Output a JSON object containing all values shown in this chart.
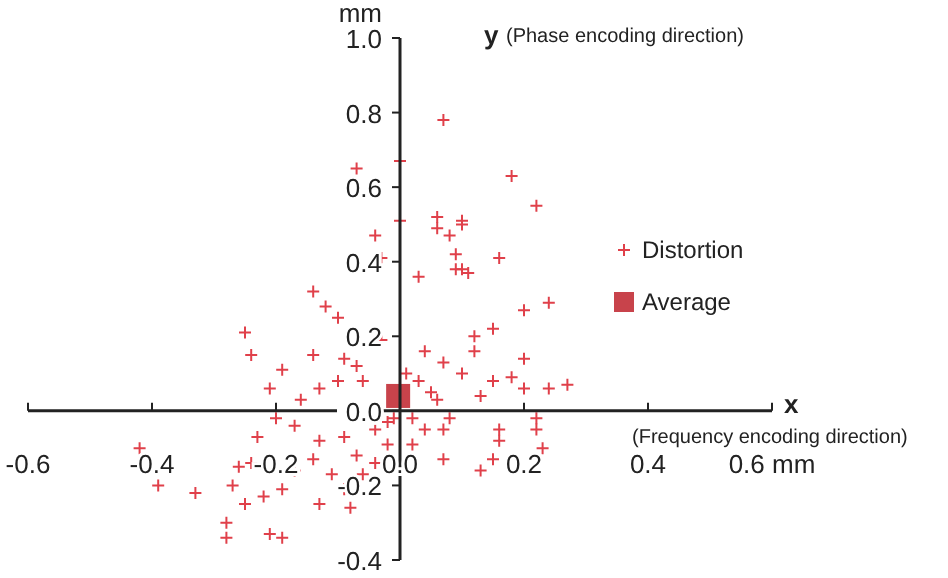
{
  "chart_data": {
    "type": "scatter",
    "ylabel": "mm",
    "annotations": [
      "y",
      "(Phase encoding direction)",
      "x",
      "(Frequency encoding direction)"
    ],
    "xlim": [
      -0.6,
      0.6
    ],
    "xticks": [
      -0.6,
      -0.4,
      -0.2,
      {
        "value": 0,
        "label": "0.0"
      },
      0.2,
      0.4,
      {
        "value": 0.6,
        "label": "0.6 mm"
      }
    ],
    "ylim": [
      -0.4,
      1.0
    ],
    "yticks": [
      -0.4,
      -0.2,
      {
        "value": 0,
        "label": "0.0"
      },
      0.2,
      0.4,
      0.6,
      0.8,
      {
        "value": 1,
        "label": "1.0"
      }
    ],
    "legend": "right",
    "series": [
      {
        "name": "Distortion",
        "color": "#e0404a",
        "marker": "cross",
        "x": [
          0.07,
          -0.07,
          0.0,
          0.0,
          -0.04,
          -0.03,
          0.06,
          0.06,
          0.1,
          0.08,
          0.09,
          0.09,
          0.1,
          0.03,
          0.18,
          0.22,
          0.1,
          0.16,
          0.11,
          0.2,
          0.24,
          0.12,
          0.2,
          0.27,
          0.24,
          0.2,
          0.18,
          0.15,
          0.13,
          0.22,
          0.22,
          0.16,
          0.16,
          0.13,
          0.23,
          0.15,
          -0.14,
          -0.12,
          -0.25,
          -0.24,
          -0.19,
          -0.21,
          -0.16,
          -0.14,
          -0.09,
          -0.07,
          -0.06,
          -0.1,
          -0.13,
          -0.03,
          0.04,
          0.07,
          0.1,
          0.03,
          0.06,
          0.02,
          0.04,
          0.07,
          0.02,
          0.07,
          -0.2,
          -0.23,
          -0.17,
          -0.13,
          -0.09,
          -0.04,
          -0.02,
          -0.42,
          -0.39,
          -0.33,
          -0.26,
          -0.24,
          -0.27,
          -0.25,
          -0.22,
          -0.19,
          -0.17,
          -0.14,
          -0.11,
          -0.13,
          -0.08,
          -0.09,
          -0.06,
          -0.04,
          -0.28,
          -0.28,
          -0.21,
          -0.19,
          -0.02,
          -0.07,
          0.01,
          -0.01,
          0.05,
          0.08,
          0.12,
          0.15,
          -0.1
        ],
        "values": [
          0.78,
          0.65,
          0.67,
          0.51,
          0.47,
          0.41,
          0.52,
          0.49,
          0.51,
          0.47,
          0.42,
          0.38,
          0.38,
          0.36,
          0.63,
          0.55,
          0.5,
          0.41,
          0.37,
          0.27,
          0.29,
          0.16,
          0.14,
          0.07,
          0.06,
          0.06,
          0.09,
          0.08,
          0.04,
          -0.02,
          -0.05,
          -0.05,
          -0.08,
          -0.16,
          -0.1,
          -0.13,
          0.32,
          0.28,
          0.21,
          0.15,
          0.11,
          0.06,
          0.03,
          0.15,
          0.14,
          0.12,
          0.08,
          0.08,
          0.06,
          0.19,
          0.16,
          0.13,
          0.1,
          0.08,
          0.03,
          -0.02,
          -0.05,
          -0.05,
          -0.09,
          -0.13,
          -0.02,
          -0.07,
          -0.04,
          -0.08,
          -0.07,
          -0.05,
          -0.09,
          -0.1,
          -0.2,
          -0.22,
          -0.15,
          -0.14,
          -0.2,
          -0.25,
          -0.23,
          -0.21,
          -0.16,
          -0.13,
          -0.17,
          -0.25,
          -0.26,
          -0.21,
          -0.17,
          -0.14,
          -0.3,
          -0.34,
          -0.33,
          -0.34,
          -0.03,
          -0.12,
          0.1,
          -0.02,
          0.05,
          -0.02,
          0.2,
          0.22,
          0.25
        ]
      },
      {
        "name": "Average",
        "color": "#c8434b",
        "marker": "square",
        "x": [
          -0.003
        ],
        "values": [
          0.04
        ]
      }
    ]
  }
}
